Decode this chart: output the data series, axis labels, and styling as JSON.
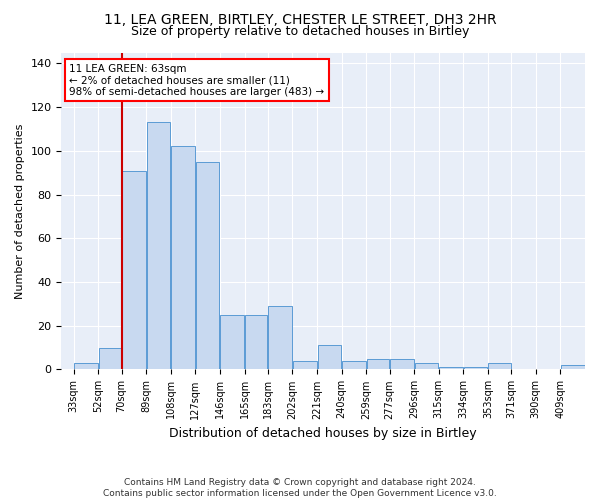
{
  "title1": "11, LEA GREEN, BIRTLEY, CHESTER LE STREET, DH3 2HR",
  "title2": "Size of property relative to detached houses in Birtley",
  "xlabel": "Distribution of detached houses by size in Birtley",
  "ylabel": "Number of detached properties",
  "footer1": "Contains HM Land Registry data © Crown copyright and database right 2024.",
  "footer2": "Contains public sector information licensed under the Open Government Licence v3.0.",
  "annotation_title": "11 LEA GREEN: 63sqm",
  "annotation_line1": "← 2% of detached houses are smaller (11)",
  "annotation_line2": "98% of semi-detached houses are larger (483) →",
  "bar_color": "#c8d9f0",
  "bar_edge_color": "#5b9bd5",
  "vline_color": "#cc0000",
  "vline_x_bin_index": 1,
  "bins": [
    33,
    52,
    70,
    89,
    108,
    127,
    146,
    165,
    183,
    202,
    221,
    240,
    259,
    277,
    296,
    315,
    334,
    353,
    371,
    390,
    409
  ],
  "values": [
    3,
    10,
    91,
    113,
    102,
    95,
    25,
    25,
    29,
    4,
    11,
    4,
    5,
    5,
    3,
    1,
    1,
    3,
    0,
    0,
    2
  ],
  "ylim": [
    0,
    145
  ],
  "yticks": [
    0,
    20,
    40,
    60,
    80,
    100,
    120,
    140
  ],
  "background_color": "#e8eef8",
  "grid_color": "#ffffff",
  "title_fontsize": 10,
  "subtitle_fontsize": 9,
  "ylabel_fontsize": 8,
  "xlabel_fontsize": 9,
  "tick_fontsize": 7,
  "footer_fontsize": 6.5
}
